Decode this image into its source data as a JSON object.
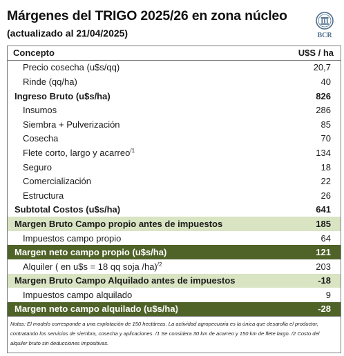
{
  "title": "Márgenes del TRIGO 2025/26 en zona núcleo",
  "subtitle": "(actualizado al 21/04/2025)",
  "logo_text": "BCR",
  "header": {
    "concept": "Concepto",
    "unit": "U$S / ha"
  },
  "rows": [
    {
      "label": "Precio cosecha (u$s/qq)",
      "value": "20,7",
      "style": "item"
    },
    {
      "label": "Rinde (qq/ha)",
      "value": "40",
      "style": "item"
    },
    {
      "label": "Ingreso Bruto (u$s/ha)",
      "value": "826",
      "style": "bold"
    },
    {
      "label": "Insumos",
      "value": "286",
      "style": "item"
    },
    {
      "label": "Siembra + Pulverización",
      "value": "85",
      "style": "item"
    },
    {
      "label": "Cosecha",
      "value": "70",
      "style": "item"
    },
    {
      "label": "Flete corto, largo y acarreo",
      "sup": "/1",
      "value": "134",
      "style": "item"
    },
    {
      "label": "Seguro",
      "value": "18",
      "style": "item"
    },
    {
      "label": "Comercialización",
      "value": "22",
      "style": "item"
    },
    {
      "label": "Estructura",
      "value": "26",
      "style": "item"
    },
    {
      "label": "Subtotal Costos (u$s/ha)",
      "value": "641",
      "style": "bold"
    },
    {
      "label": "Margen Bruto Campo propio antes de impuestos",
      "value": "185",
      "style": "green"
    },
    {
      "label": "Impuestos  campo propio",
      "value": "64",
      "style": "item"
    },
    {
      "label": "Margen neto campo propio (u$s/ha)",
      "value": "121",
      "style": "dark"
    },
    {
      "label": "Alquiler ( en u$s = 18 qq soja /ha)",
      "sup": "/2",
      "value": "203",
      "style": "item"
    },
    {
      "label": "Margen Bruto Campo Alquilado antes de impuestos",
      "value": "-18",
      "style": "green"
    },
    {
      "label": "Impuestos campo alquilado",
      "value": "9",
      "style": "item"
    },
    {
      "label": "Margen neto campo alquilado (u$s/ha)",
      "value": "-28",
      "style": "dark"
    }
  ],
  "notes": "Notas: El modelo corresponde a una explotación de 150 hectáreas. La actividad agropecuaria es la única que desarolla el productor, contratando los servicios de siembra, cosecha y aplicaciones. /1 Se considera 30 km de acarreo y 150 km de flete largo. /2 Costo del alquiler bruto sin deducciones impositivas.",
  "colors": {
    "green_band": "#d9e4c3",
    "dark_band": "#4f6228",
    "logo": "#4d6d8a"
  }
}
